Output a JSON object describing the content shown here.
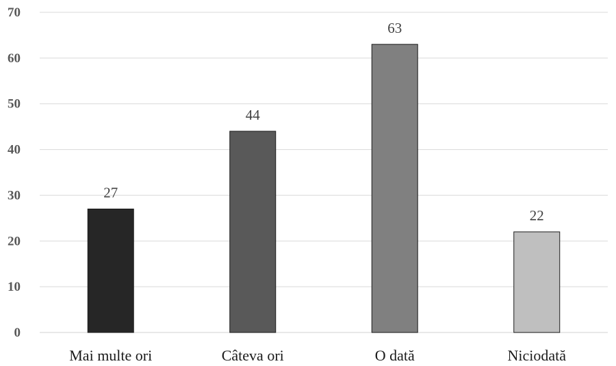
{
  "chart_data": {
    "type": "bar",
    "categories": [
      "Mai multe ori",
      "Câteva ori",
      "O dată",
      "Niciodată"
    ],
    "values": [
      27,
      44,
      63,
      22
    ],
    "colors": [
      "#262626",
      "#595959",
      "#808080",
      "#bfbfbf"
    ],
    "title": "",
    "xlabel": "",
    "ylabel": "",
    "ylim": [
      0,
      70
    ],
    "yticks": [
      0,
      10,
      20,
      30,
      40,
      50,
      60,
      70
    ],
    "grid": true,
    "data_labels": true,
    "legend": "none"
  }
}
